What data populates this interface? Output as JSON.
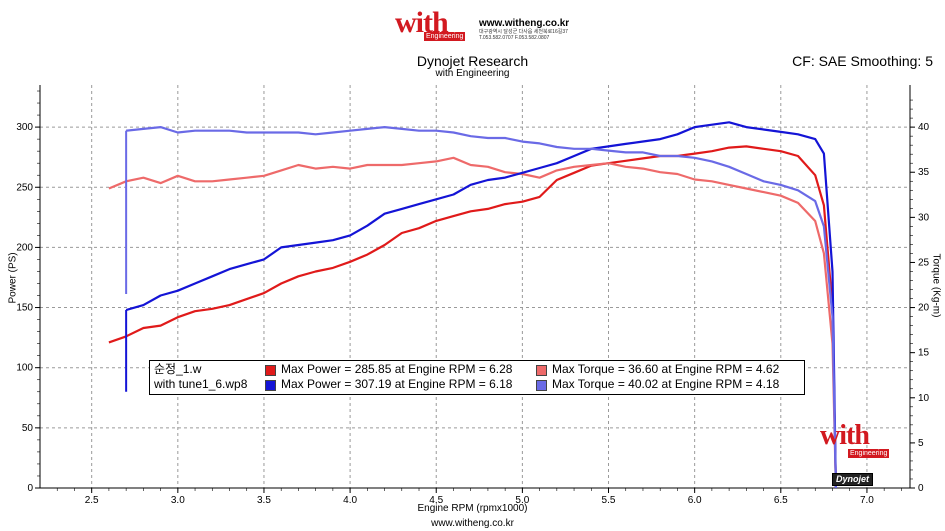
{
  "header": {
    "logo_text": "with",
    "logo_sub": "Engineering",
    "site": "www.witheng.co.kr",
    "address": "대구광역시 달성군 다사읍 세천북로16길37",
    "phone": "T.053.582.0707 F.053.582.0807",
    "title": "Dynojet Research",
    "subtitle": "with Engineering",
    "cf": "CF: SAE Smoothing: 5"
  },
  "footer": {
    "url": "www.witheng.co.kr"
  },
  "watermark": {
    "logo": "with",
    "sub": "Engineering",
    "dynojet": "Dynojet"
  },
  "legend": {
    "rows": [
      {
        "name": "순정_1.w",
        "power": "Max Power = 285.85 at Engine RPM = 6.28",
        "torque": "Max Torque = 36.60 at Engine RPM = 4.62"
      },
      {
        "name": "with tune1_6.wp8",
        "power": "Max Power = 307.19 at Engine RPM = 6.18",
        "torque": "Max Torque = 40.02 at Engine RPM = 4.18"
      }
    ]
  },
  "chart_data": {
    "type": "line",
    "xlabel": "Engine RPM (rpmx1000)",
    "ylabel": "Power (PS)",
    "y2label": "Torque (Kg-m)",
    "xlim": [
      2.2,
      7.25
    ],
    "ylim": [
      0,
      335
    ],
    "y2lim": [
      0,
      44.67
    ],
    "xticks": [
      "2.5",
      "3.0",
      "3.5",
      "4.0",
      "4.5",
      "5.0",
      "5.5",
      "6.0",
      "6.5",
      "7.0"
    ],
    "yticks": [
      "0",
      "50",
      "100",
      "150",
      "200",
      "250",
      "300"
    ],
    "y2ticks": [
      "0",
      "5",
      "10",
      "15",
      "20",
      "25",
      "30",
      "35",
      "40"
    ],
    "grid": true,
    "colors": {
      "stock_power": "#e01a1a",
      "stock_torque": "#ee6a6a",
      "tune_power": "#1414d6",
      "tune_torque": "#6a6ae6"
    },
    "series": [
      {
        "name": "순정_1.w",
        "measure": "power",
        "axis": "left",
        "x": [
          2.6,
          2.7,
          2.8,
          2.9,
          3.0,
          3.1,
          3.2,
          3.3,
          3.4,
          3.5,
          3.6,
          3.7,
          3.8,
          3.9,
          4.0,
          4.1,
          4.2,
          4.3,
          4.4,
          4.5,
          4.6,
          4.7,
          4.8,
          4.9,
          5.0,
          5.1,
          5.2,
          5.3,
          5.4,
          5.5,
          5.6,
          5.7,
          5.8,
          5.9,
          6.0,
          6.1,
          6.2,
          6.3,
          6.4,
          6.5,
          6.6,
          6.7,
          6.75,
          6.8,
          6.82
        ],
        "y": [
          121,
          126,
          133,
          135,
          142,
          147,
          149,
          152,
          157,
          162,
          170,
          176,
          180,
          183,
          188,
          194,
          202,
          212,
          216,
          222,
          226,
          230,
          232,
          236,
          238,
          242,
          256,
          262,
          268,
          270,
          272,
          274,
          276,
          276,
          278,
          280,
          283,
          284,
          282,
          280,
          276,
          260,
          235,
          150,
          0
        ]
      },
      {
        "name": "순정_1.w",
        "measure": "torque",
        "axis": "right",
        "x": [
          2.6,
          2.7,
          2.8,
          2.9,
          3.0,
          3.1,
          3.2,
          3.3,
          3.4,
          3.5,
          3.6,
          3.7,
          3.8,
          3.9,
          4.0,
          4.1,
          4.2,
          4.3,
          4.4,
          4.5,
          4.6,
          4.7,
          4.8,
          4.9,
          5.0,
          5.1,
          5.2,
          5.3,
          5.4,
          5.5,
          5.6,
          5.7,
          5.8,
          5.9,
          6.0,
          6.1,
          6.2,
          6.3,
          6.4,
          6.5,
          6.6,
          6.7,
          6.75,
          6.8,
          6.82
        ],
        "y": [
          33.2,
          34.0,
          34.4,
          33.8,
          34.6,
          34.0,
          34.0,
          34.2,
          34.4,
          34.6,
          35.2,
          35.8,
          35.4,
          35.6,
          35.4,
          35.8,
          35.8,
          35.8,
          36.0,
          36.2,
          36.6,
          35.8,
          35.6,
          35.0,
          34.8,
          34.4,
          35.2,
          35.6,
          35.8,
          36.0,
          35.6,
          35.4,
          35.0,
          34.8,
          34.2,
          34.0,
          33.6,
          33.2,
          32.8,
          32.4,
          31.6,
          29.6,
          26.0,
          16.0,
          0
        ]
      },
      {
        "name": "with tune1_6.wp8",
        "measure": "power",
        "axis": "left",
        "x": [
          2.7,
          2.8,
          2.9,
          3.0,
          3.1,
          3.2,
          3.3,
          3.4,
          3.5,
          3.6,
          3.7,
          3.8,
          3.9,
          4.0,
          4.1,
          4.2,
          4.3,
          4.4,
          4.5,
          4.6,
          4.7,
          4.8,
          4.9,
          5.0,
          5.1,
          5.2,
          5.3,
          5.4,
          5.5,
          5.6,
          5.7,
          5.8,
          5.9,
          6.0,
          6.1,
          6.2,
          6.3,
          6.4,
          6.5,
          6.6,
          6.7,
          6.75,
          6.8,
          6.82
        ],
        "y": [
          148,
          152,
          160,
          164,
          170,
          176,
          182,
          186,
          190,
          200,
          202,
          204,
          206,
          210,
          218,
          228,
          232,
          236,
          240,
          244,
          252,
          256,
          258,
          262,
          266,
          270,
          276,
          282,
          284,
          286,
          288,
          290,
          294,
          300,
          302,
          304,
          300,
          298,
          296,
          294,
          290,
          278,
          180,
          0
        ]
      },
      {
        "name": "with tune1_6.wp8",
        "measure": "torque",
        "axis": "right",
        "x": [
          2.7,
          2.8,
          2.9,
          3.0,
          3.1,
          3.2,
          3.3,
          3.4,
          3.5,
          3.6,
          3.7,
          3.8,
          3.9,
          4.0,
          4.1,
          4.2,
          4.3,
          4.4,
          4.5,
          4.6,
          4.7,
          4.8,
          4.9,
          5.0,
          5.1,
          5.2,
          5.3,
          5.4,
          5.5,
          5.6,
          5.7,
          5.8,
          5.9,
          6.0,
          6.1,
          6.2,
          6.3,
          6.4,
          6.5,
          6.6,
          6.7,
          6.75,
          6.8,
          6.82
        ],
        "y": [
          39.6,
          39.8,
          40.0,
          39.4,
          39.6,
          39.6,
          39.6,
          39.4,
          39.4,
          39.4,
          39.4,
          39.2,
          39.4,
          39.6,
          39.8,
          40.0,
          39.8,
          39.6,
          39.6,
          39.4,
          39.0,
          38.8,
          38.8,
          38.4,
          38.2,
          37.8,
          37.6,
          37.6,
          37.4,
          37.2,
          37.2,
          36.8,
          36.8,
          36.6,
          36.2,
          35.6,
          34.8,
          34.0,
          33.6,
          33.0,
          31.8,
          29.0,
          19.0,
          0
        ]
      }
    ]
  }
}
